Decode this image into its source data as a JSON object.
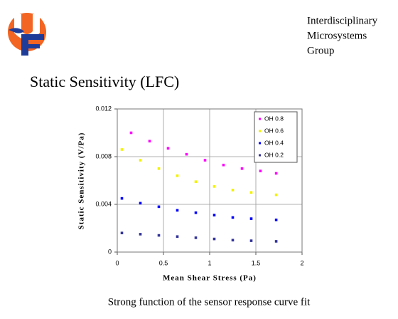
{
  "header": {
    "lines": [
      "Interdisciplinary",
      "Microsystems",
      "Group"
    ]
  },
  "title": "Static Sensitivity (LFC)",
  "caption": "Strong function of the sensor response curve fit",
  "chart_data": {
    "type": "scatter",
    "xlabel": "Mean Shear Stress (Pa)",
    "ylabel": "Static Sensitivity (V/Pa)",
    "xlim": [
      0,
      2
    ],
    "xticks": [
      0,
      0.5,
      1,
      1.5,
      2
    ],
    "ylim": [
      0,
      0.012
    ],
    "yticks": [
      0,
      0.004,
      0.008,
      0.012
    ],
    "grid": true,
    "legend": "upper-right",
    "series": [
      {
        "name": "OH 0.8",
        "color": "#ff00ff",
        "x": [
          0.15,
          0.35,
          0.55,
          0.75,
          0.95,
          1.15,
          1.35,
          1.55,
          1.72
        ],
        "values": [
          0.01,
          0.0093,
          0.0087,
          0.0082,
          0.0077,
          0.0073,
          0.007,
          0.0068,
          0.0066
        ]
      },
      {
        "name": "OH 0.6",
        "color": "#f2f200",
        "x": [
          0.05,
          0.25,
          0.45,
          0.65,
          0.85,
          1.05,
          1.25,
          1.45,
          1.72
        ],
        "values": [
          0.0086,
          0.0077,
          0.007,
          0.0064,
          0.0059,
          0.0055,
          0.0052,
          0.005,
          0.0048
        ]
      },
      {
        "name": "OH 0.4",
        "color": "#0000ff",
        "x": [
          0.05,
          0.25,
          0.45,
          0.65,
          0.85,
          1.05,
          1.25,
          1.45,
          1.72
        ],
        "values": [
          0.0045,
          0.0041,
          0.0038,
          0.0035,
          0.0033,
          0.0031,
          0.0029,
          0.0028,
          0.0027
        ]
      },
      {
        "name": "OH 0.2",
        "color": "#333399",
        "x": [
          0.05,
          0.25,
          0.45,
          0.65,
          0.85,
          1.05,
          1.25,
          1.45,
          1.72
        ],
        "values": [
          0.0016,
          0.0015,
          0.0014,
          0.0013,
          0.0012,
          0.0011,
          0.001,
          0.00095,
          0.0009
        ]
      }
    ]
  }
}
